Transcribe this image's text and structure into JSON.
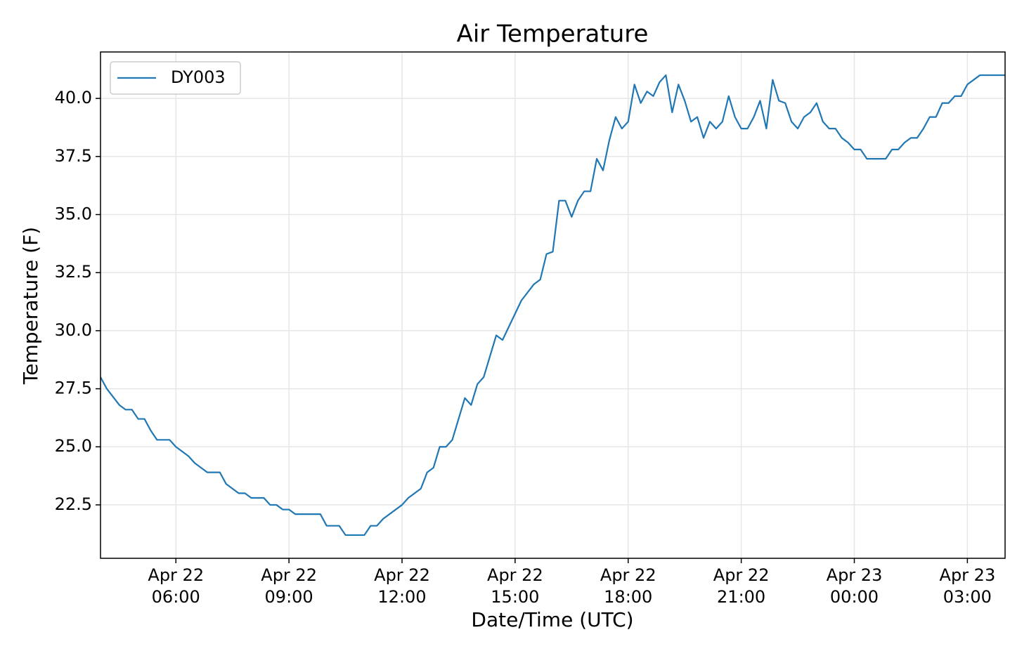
{
  "chart_data": {
    "type": "line",
    "title": "Air Temperature",
    "x_label": "Date/Time (UTC)",
    "y_label": "Temperature (F)",
    "x": [
      "Apr 22 04:00",
      "Apr 22 04:10",
      "Apr 22 04:30",
      "Apr 22 04:40",
      "Apr 22 04:50",
      "Apr 22 05:00",
      "Apr 22 05:10",
      "Apr 22 05:20",
      "Apr 22 05:30",
      "Apr 22 05:50",
      "Apr 22 06:00",
      "Apr 22 06:20",
      "Apr 22 06:30",
      "Apr 22 06:50",
      "Apr 22 07:10",
      "Apr 22 07:20",
      "Apr 22 07:40",
      "Apr 22 07:50",
      "Apr 22 08:00",
      "Apr 22 08:20",
      "Apr 22 08:30",
      "Apr 22 08:40",
      "Apr 22 08:50",
      "Apr 22 09:00",
      "Apr 22 09:10",
      "Apr 22 09:50",
      "Apr 22 10:00",
      "Apr 22 10:20",
      "Apr 22 10:30",
      "Apr 22 11:00",
      "Apr 22 11:10",
      "Apr 22 11:20",
      "Apr 22 11:30",
      "Apr 22 12:00",
      "Apr 22 12:10",
      "Apr 22 12:30",
      "Apr 22 12:40",
      "Apr 22 12:50",
      "Apr 22 13:00",
      "Apr 22 13:10",
      "Apr 22 13:20",
      "Apr 22 13:40",
      "Apr 22 13:50",
      "Apr 22 14:00",
      "Apr 22 14:10",
      "Apr 22 14:30",
      "Apr 22 14:40",
      "Apr 22 15:10",
      "Apr 22 15:30",
      "Apr 22 15:40",
      "Apr 22 15:50",
      "Apr 22 16:00",
      "Apr 22 16:10",
      "Apr 22 16:20",
      "Apr 22 16:30",
      "Apr 22 16:40",
      "Apr 22 16:50",
      "Apr 22 17:00",
      "Apr 22 17:10",
      "Apr 22 17:20",
      "Apr 22 17:30",
      "Apr 22 17:40",
      "Apr 22 17:50",
      "Apr 22 18:00",
      "Apr 22 18:10",
      "Apr 22 18:20",
      "Apr 22 18:30",
      "Apr 22 18:40",
      "Apr 22 18:50",
      "Apr 22 19:00",
      "Apr 22 19:10",
      "Apr 22 19:20",
      "Apr 22 19:30",
      "Apr 22 19:40",
      "Apr 22 19:50",
      "Apr 22 20:00",
      "Apr 22 20:10",
      "Apr 22 20:20",
      "Apr 22 20:30",
      "Apr 22 20:40",
      "Apr 22 20:50",
      "Apr 22 21:00",
      "Apr 22 21:10",
      "Apr 22 21:20",
      "Apr 22 21:30",
      "Apr 22 21:40",
      "Apr 22 21:50",
      "Apr 22 22:00",
      "Apr 22 22:10",
      "Apr 22 22:20",
      "Apr 22 22:30",
      "Apr 22 22:40",
      "Apr 22 22:50",
      "Apr 22 23:00",
      "Apr 22 23:10",
      "Apr 22 23:20",
      "Apr 22 23:30",
      "Apr 22 23:40",
      "Apr 22 23:50",
      "Apr 23 00:00",
      "Apr 23 00:10",
      "Apr 23 00:20",
      "Apr 23 00:50",
      "Apr 23 01:00",
      "Apr 23 01:10",
      "Apr 23 01:20",
      "Apr 23 01:30",
      "Apr 23 01:40",
      "Apr 23 01:50",
      "Apr 23 02:00",
      "Apr 23 02:10",
      "Apr 23 02:20",
      "Apr 23 02:30",
      "Apr 23 02:40",
      "Apr 23 02:50",
      "Apr 23 03:00",
      "Apr 23 03:20",
      "Apr 23 04:00"
    ],
    "series": [
      {
        "name": "DY003",
        "color": "#1f77b4",
        "values": [
          28.0,
          27.5,
          26.8,
          26.6,
          26.6,
          26.2,
          26.2,
          25.7,
          25.3,
          25.3,
          25.0,
          24.6,
          24.3,
          23.9,
          23.9,
          23.4,
          23.0,
          23.0,
          22.8,
          22.8,
          22.5,
          22.5,
          22.3,
          22.3,
          22.1,
          22.1,
          21.6,
          21.6,
          21.2,
          21.2,
          21.6,
          21.6,
          21.9,
          22.5,
          22.8,
          23.2,
          23.9,
          24.1,
          25.0,
          25.0,
          25.3,
          27.1,
          26.8,
          27.7,
          28.0,
          29.8,
          29.6,
          31.3,
          32.0,
          32.2,
          33.3,
          33.4,
          35.6,
          35.6,
          34.9,
          35.6,
          36.0,
          36.0,
          37.4,
          36.9,
          38.2,
          39.2,
          38.7,
          39.0,
          40.6,
          39.8,
          40.3,
          40.1,
          40.7,
          41.0,
          39.4,
          40.6,
          39.9,
          39.0,
          39.2,
          38.3,
          39.0,
          38.7,
          39.0,
          40.1,
          39.2,
          38.7,
          38.7,
          39.2,
          39.9,
          38.7,
          40.8,
          39.9,
          39.8,
          39.0,
          38.7,
          39.2,
          39.4,
          39.8,
          39.0,
          38.7,
          38.7,
          38.3,
          38.1,
          37.8,
          37.8,
          37.4,
          37.4,
          37.8,
          37.8,
          38.1,
          38.3,
          38.3,
          38.7,
          39.2,
          39.2,
          39.8,
          39.8,
          40.1,
          40.1,
          40.6,
          41.0,
          41.0
        ]
      }
    ],
    "xlim": [
      "Apr 22 04:00",
      "Apr 23 04:00"
    ],
    "xticks": [
      "Apr 22 06:00",
      "Apr 22 09:00",
      "Apr 22 12:00",
      "Apr 22 15:00",
      "Apr 22 18:00",
      "Apr 22 21:00",
      "Apr 23 00:00",
      "Apr 23 03:00"
    ],
    "ylim": [
      20.2,
      42.0
    ],
    "yticks": [
      22.5,
      {
        "value": 25,
        "label": "25.0"
      },
      27.5,
      {
        "value": 30,
        "label": "30.0"
      },
      32.5,
      {
        "value": 35,
        "label": "35.0"
      },
      37.5,
      {
        "value": 40,
        "label": "40.0"
      }
    ],
    "grid": true,
    "legend": "upper left"
  }
}
